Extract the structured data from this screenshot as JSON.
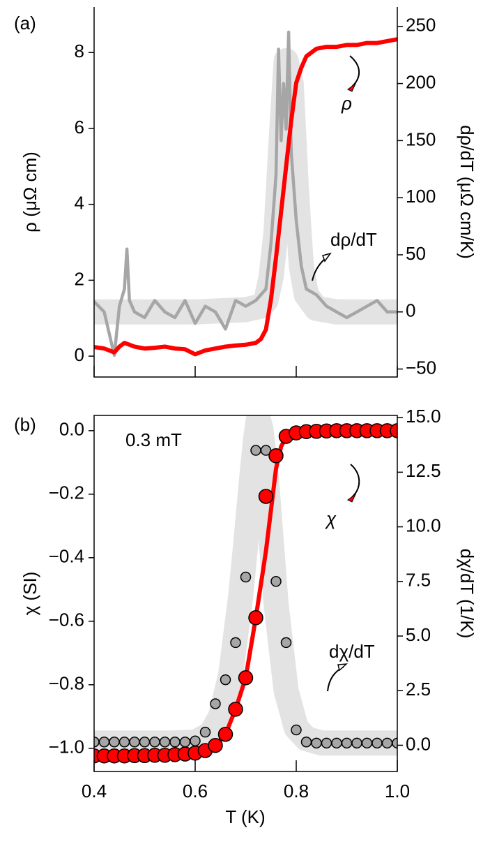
{
  "chart_data": [
    {
      "type": "line",
      "panel_label": "(a)",
      "y_label": "ρ (μΩ cm)",
      "y2_label": "dρ/dT (μΩ cm/K)",
      "xlim": [
        0.4,
        1.0
      ],
      "xticks": [
        0.4,
        0.6,
        0.8,
        1
      ],
      "show_xtick_labels": false,
      "ylim": [
        -0.55,
        9.2
      ],
      "yticks": [
        0,
        2,
        4,
        6,
        8
      ],
      "y2lim": [
        -57,
        267
      ],
      "y2ticks": [
        {
          "value": -50,
          "label": "−50"
        },
        0,
        50,
        100,
        150,
        200,
        250
      ],
      "annotations": [
        "ρ",
        "dρ/dT"
      ],
      "series": [
        {
          "mark": "band",
          "color": "#e3e3e3",
          "axis": "y2",
          "x": [
            0.4,
            0.5,
            0.6,
            0.7,
            0.73,
            0.74,
            0.75,
            0.76,
            0.77,
            0.78,
            0.79,
            0.8,
            0.81,
            0.82,
            0.84,
            0.88,
            0.95,
            1.0
          ],
          "values": [
            0,
            0,
            0,
            2,
            5,
            10,
            30,
            70,
            150,
            220,
            200,
            110,
            40,
            15,
            3,
            0,
            0,
            0
          ]
        },
        {
          "mark": "line",
          "color": "#a6a6a6",
          "axis": "y2",
          "x": [
            0.4,
            0.42,
            0.44,
            0.45,
            0.46,
            0.465,
            0.47,
            0.48,
            0.5,
            0.52,
            0.54,
            0.56,
            0.58,
            0.6,
            0.62,
            0.64,
            0.66,
            0.68,
            0.7,
            0.72,
            0.74,
            0.75,
            0.76,
            0.765,
            0.77,
            0.775,
            0.78,
            0.785,
            0.79,
            0.8,
            0.81,
            0.82,
            0.84,
            0.86,
            0.88,
            0.9,
            0.92,
            0.94,
            0.96,
            0.98,
            1.0
          ],
          "values": [
            9,
            0,
            -38,
            5,
            20,
            55,
            10,
            0,
            -5,
            10,
            0,
            -5,
            10,
            -10,
            5,
            0,
            -15,
            10,
            5,
            10,
            20,
            60,
            120,
            230,
            150,
            200,
            160,
            245,
            140,
            80,
            40,
            20,
            15,
            5,
            0,
            -5,
            0,
            5,
            10,
            0,
            0
          ]
        },
        {
          "mark": "line",
          "color": "#ff0000",
          "axis": "y",
          "x": [
            0.4,
            0.42,
            0.44,
            0.45,
            0.46,
            0.48,
            0.5,
            0.52,
            0.54,
            0.56,
            0.58,
            0.6,
            0.62,
            0.64,
            0.66,
            0.68,
            0.7,
            0.72,
            0.73,
            0.74,
            0.75,
            0.76,
            0.77,
            0.78,
            0.79,
            0.8,
            0.81,
            0.82,
            0.84,
            0.86,
            0.88,
            0.9,
            0.92,
            0.94,
            0.96,
            0.98,
            1.0
          ],
          "values": [
            0.24,
            0.2,
            0.1,
            0.25,
            0.35,
            0.25,
            0.2,
            0.22,
            0.25,
            0.2,
            0.18,
            0.05,
            0.15,
            0.2,
            0.25,
            0.28,
            0.3,
            0.35,
            0.45,
            0.7,
            1.5,
            2.6,
            3.8,
            5.0,
            6.2,
            7.2,
            7.6,
            7.9,
            8.1,
            8.15,
            8.15,
            8.2,
            8.2,
            8.25,
            8.25,
            8.3,
            8.35
          ]
        }
      ]
    },
    {
      "type": "line",
      "panel_label": "(b)",
      "x_label": "T (K)",
      "y_label": "χ (SI)",
      "y2_label": "dχ/dT (1/K)",
      "xlim": [
        0.4,
        1.0
      ],
      "xticks": [
        0.4,
        0.6,
        0.8,
        {
          "value": 1,
          "label": "1.0"
        }
      ],
      "show_xtick_labels": true,
      "ylim": [
        -1.073,
        0.048
      ],
      "yticks": [
        {
          "value": -1,
          "label": "−1.0"
        },
        {
          "value": -0.8,
          "label": "−0.8"
        },
        {
          "value": -0.6,
          "label": "−0.6"
        },
        {
          "value": -0.4,
          "label": "−0.4"
        },
        {
          "value": -0.2,
          "label": "−0.2"
        },
        {
          "value": 0,
          "label": "0.0"
        }
      ],
      "y2lim": [
        -1.2,
        15.1
      ],
      "y2ticks": [
        {
          "value": 0,
          "label": "0.0"
        },
        2.5,
        {
          "value": 5,
          "label": "5.0"
        },
        7.5,
        {
          "value": 10,
          "label": "10.0"
        },
        12.5,
        {
          "value": 15,
          "label": "15.0"
        }
      ],
      "annotations": [
        "0.3 mT",
        "χ",
        "dχ/dT"
      ],
      "series": [
        {
          "mark": "band",
          "color": "#e3e3e3",
          "axis": "y2",
          "x": [
            0.4,
            0.55,
            0.6,
            0.63,
            0.65,
            0.67,
            0.69,
            0.7,
            0.71,
            0.72,
            0.725,
            0.73,
            0.74,
            0.75,
            0.76,
            0.78,
            0.8,
            0.82,
            0.85,
            0.9,
            1.0
          ],
          "values": [
            0.1,
            0.1,
            0.15,
            0.5,
            1.3,
            3.2,
            6.8,
            9.2,
            11.8,
            14.1,
            14.9,
            14.5,
            12.5,
            9.5,
            6.5,
            2.5,
            0.8,
            0.3,
            0.1,
            0.1,
            0.1
          ]
        },
        {
          "mark": "points",
          "color": "#a6a6a6",
          "axis": "y2",
          "x": [
            0.4,
            0.42,
            0.44,
            0.46,
            0.48,
            0.5,
            0.52,
            0.54,
            0.56,
            0.58,
            0.6,
            0.62,
            0.64,
            0.66,
            0.68,
            0.7,
            0.72,
            0.74,
            0.76,
            0.78,
            0.8,
            0.82,
            0.84,
            0.86,
            0.88,
            0.9,
            0.92,
            0.94,
            0.96,
            0.98,
            1.0
          ],
          "values": [
            0.15,
            0.15,
            0.15,
            0.15,
            0.15,
            0.15,
            0.15,
            0.15,
            0.15,
            0.15,
            0.2,
            0.6,
            1.9,
            3.0,
            4.7,
            7.7,
            13.5,
            13.5,
            7.5,
            4.7,
            0.7,
            0.15,
            0.1,
            0.1,
            0.1,
            0.1,
            0.1,
            0.1,
            0.1,
            0.1,
            0.1
          ]
        },
        {
          "mark": "line",
          "color": "#ff0000",
          "axis": "y",
          "x": [
            0.4,
            0.5,
            0.6,
            0.62,
            0.64,
            0.66,
            0.68,
            0.7,
            0.72,
            0.74,
            0.76,
            0.77,
            0.78,
            0.8,
            0.85,
            1.0
          ],
          "values": [
            -1.02,
            -1.02,
            -1.01,
            -1.0,
            -0.99,
            -0.956,
            -0.877,
            -0.778,
            -0.589,
            -0.38,
            -0.12,
            -0.05,
            -0.02,
            -0.005,
            0,
            0
          ]
        },
        {
          "mark": "points",
          "color": "#ff0000",
          "axis": "y",
          "x": [
            0.4,
            0.42,
            0.44,
            0.46,
            0.48,
            0.5,
            0.52,
            0.54,
            0.56,
            0.58,
            0.6,
            0.62,
            0.64,
            0.66,
            0.68,
            0.7,
            0.72,
            0.74,
            0.76,
            0.78,
            0.8,
            0.82,
            0.84,
            0.86,
            0.88,
            0.9,
            0.92,
            0.94,
            0.96,
            0.98,
            1.0
          ],
          "values": [
            -1.024,
            -1.024,
            -1.024,
            -1.024,
            -1.023,
            -1.023,
            -1.022,
            -1.022,
            -1.02,
            -1.018,
            -1.015,
            -1.007,
            -0.991,
            -0.956,
            -0.877,
            -0.778,
            -0.589,
            -0.207,
            -0.079,
            -0.018,
            -0.007,
            -0.003,
            -0.002,
            -0.001,
            0,
            0,
            0,
            0,
            0,
            0,
            0
          ]
        }
      ]
    }
  ]
}
